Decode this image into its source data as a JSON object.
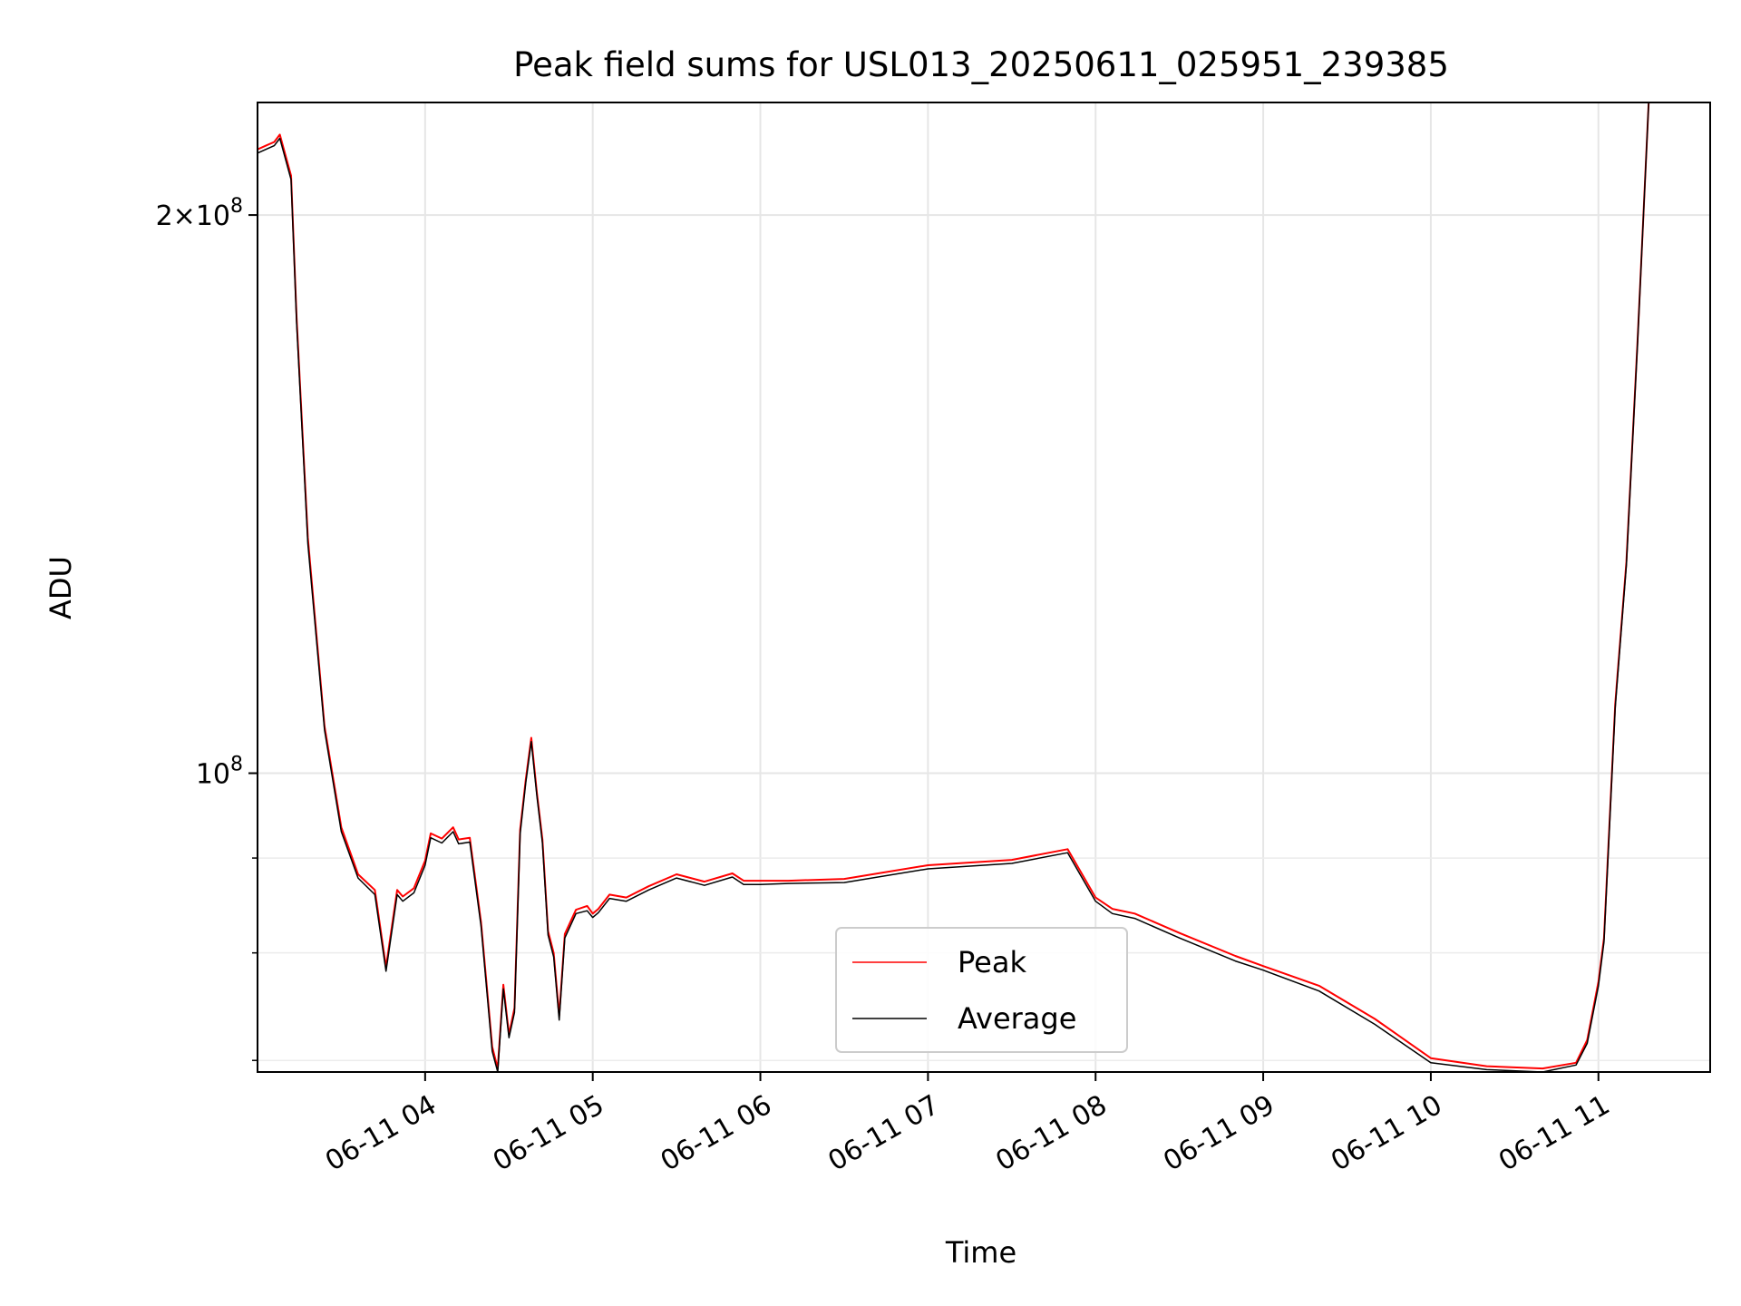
{
  "chart_data": {
    "type": "line",
    "title": "Peak field sums for USL013_20250611_025951_239385",
    "xlabel": "Time",
    "ylabel": "ADU",
    "yscale": "log",
    "xlim": [
      "2025-06-11 03:00",
      "2025-06-11 11:40"
    ],
    "ylim": [
      69000000,
      230000000
    ],
    "grid": true,
    "legend": {
      "position": "lower-center",
      "entries": [
        "Peak",
        "Average"
      ]
    },
    "x_ticks": [
      "06-11 04",
      "06-11 05",
      "06-11 06",
      "06-11 07",
      "06-11 08",
      "06-11 09",
      "06-11 10",
      "06-11 11"
    ],
    "y_ticks": [
      {
        "value": 200000000,
        "base": "2×10",
        "exp": "8"
      },
      {
        "value": 100000000,
        "base": "10",
        "exp": "8"
      }
    ],
    "y_minor_ticks": [
      90000000,
      80000000,
      70000000
    ],
    "series": [
      {
        "name": "Peak",
        "color": "#ff0000",
        "x": [
          "03:00",
          "03:03",
          "03:06",
          "03:08",
          "03:12",
          "03:14",
          "03:18",
          "03:24",
          "03:30",
          "03:36",
          "03:42",
          "03:46",
          "03:50",
          "03:52",
          "03:56",
          "04:00",
          "04:02",
          "04:06",
          "04:10",
          "04:12",
          "04:16",
          "04:20",
          "04:24",
          "04:26",
          "04:28",
          "04:30",
          "04:32",
          "04:34",
          "04:36",
          "04:38",
          "04:40",
          "04:42",
          "04:44",
          "04:46",
          "04:48",
          "04:50",
          "04:54",
          "04:58",
          "05:00",
          "05:02",
          "05:06",
          "05:12",
          "05:20",
          "05:30",
          "05:40",
          "05:50",
          "05:54",
          "06:00",
          "06:10",
          "06:30",
          "07:00",
          "07:30",
          "07:50",
          "08:00",
          "08:06",
          "08:14",
          "08:30",
          "08:50",
          "09:00",
          "09:20",
          "09:40",
          "10:00",
          "10:20",
          "10:40",
          "10:52",
          "10:56",
          "11:00",
          "11:02",
          "11:06",
          "11:10",
          "11:14",
          "11:18",
          "11:22",
          "11:26",
          "11:30",
          "11:34",
          "11:40"
        ],
        "y": [
          217000000,
          218000000,
          219000000,
          221000000,
          210000000,
          176000000,
          134000000,
          106000000,
          93500000,
          88200000,
          86500000,
          78600000,
          86500000,
          85800000,
          86700000,
          89700000,
          92800000,
          92200000,
          93500000,
          92100000,
          92300000,
          83100000,
          71200000,
          69300000,
          76900000,
          72300000,
          74700000,
          93200000,
          99200000,
          104500000,
          97600000,
          92100000,
          82200000,
          80000000,
          74000000,
          81900000,
          84400000,
          84800000,
          84000000,
          84500000,
          86000000,
          85700000,
          86900000,
          88200000,
          87400000,
          88300000,
          87500000,
          87500000,
          87500000,
          87700000,
          89200000,
          89800000,
          91000000,
          85700000,
          84500000,
          84000000,
          82000000,
          79700000,
          78700000,
          76800000,
          73700000,
          70200000,
          69500000,
          69300000,
          69800000,
          71800000,
          77200000,
          81500000,
          109000000,
          130000000,
          171000000,
          230000000,
          230000000,
          230000000,
          230000000,
          230000000,
          230000000
        ]
      },
      {
        "name": "Average",
        "color": "#000000",
        "x": [
          "03:00",
          "03:03",
          "03:06",
          "03:08",
          "03:12",
          "03:14",
          "03:18",
          "03:24",
          "03:30",
          "03:36",
          "03:42",
          "03:46",
          "03:50",
          "03:52",
          "03:56",
          "04:00",
          "04:02",
          "04:06",
          "04:10",
          "04:12",
          "04:16",
          "04:20",
          "04:24",
          "04:26",
          "04:28",
          "04:30",
          "04:32",
          "04:34",
          "04:36",
          "04:38",
          "04:40",
          "04:42",
          "04:44",
          "04:46",
          "04:48",
          "04:50",
          "04:54",
          "04:58",
          "05:00",
          "05:02",
          "05:06",
          "05:12",
          "05:20",
          "05:30",
          "05:40",
          "05:50",
          "05:54",
          "06:00",
          "06:10",
          "06:30",
          "07:00",
          "07:30",
          "07:50",
          "08:00",
          "08:06",
          "08:14",
          "08:30",
          "08:50",
          "09:00",
          "09:20",
          "09:40",
          "10:00",
          "10:20",
          "10:40",
          "10:52",
          "10:56",
          "11:00",
          "11:02",
          "11:06",
          "11:10",
          "11:14",
          "11:18",
          "11:22",
          "11:26",
          "11:30",
          "11:34",
          "11:40"
        ],
        "y": [
          216000000,
          217000000,
          218000000,
          220000000,
          209000000,
          175000000,
          133000000,
          105500000,
          93000000,
          87800000,
          86000000,
          78200000,
          86000000,
          85300000,
          86200000,
          89200000,
          92300000,
          91700000,
          93000000,
          91600000,
          91800000,
          82700000,
          70800000,
          69000000,
          76500000,
          72000000,
          74300000,
          92700000,
          98800000,
          104000000,
          97200000,
          91700000,
          81800000,
          79600000,
          73600000,
          81500000,
          84000000,
          84300000,
          83600000,
          84100000,
          85600000,
          85300000,
          86500000,
          87800000,
          87000000,
          87900000,
          87100000,
          87100000,
          87200000,
          87300000,
          88800000,
          89400000,
          90600000,
          85300000,
          84000000,
          83500000,
          81500000,
          79200000,
          78300000,
          76300000,
          73200000,
          69800000,
          69200000,
          69000000,
          69600000,
          71500000,
          76800000,
          81100000,
          108500000,
          129500000,
          170500000,
          230000000,
          230000000,
          230000000,
          230000000,
          230000000,
          230000000
        ]
      }
    ]
  }
}
